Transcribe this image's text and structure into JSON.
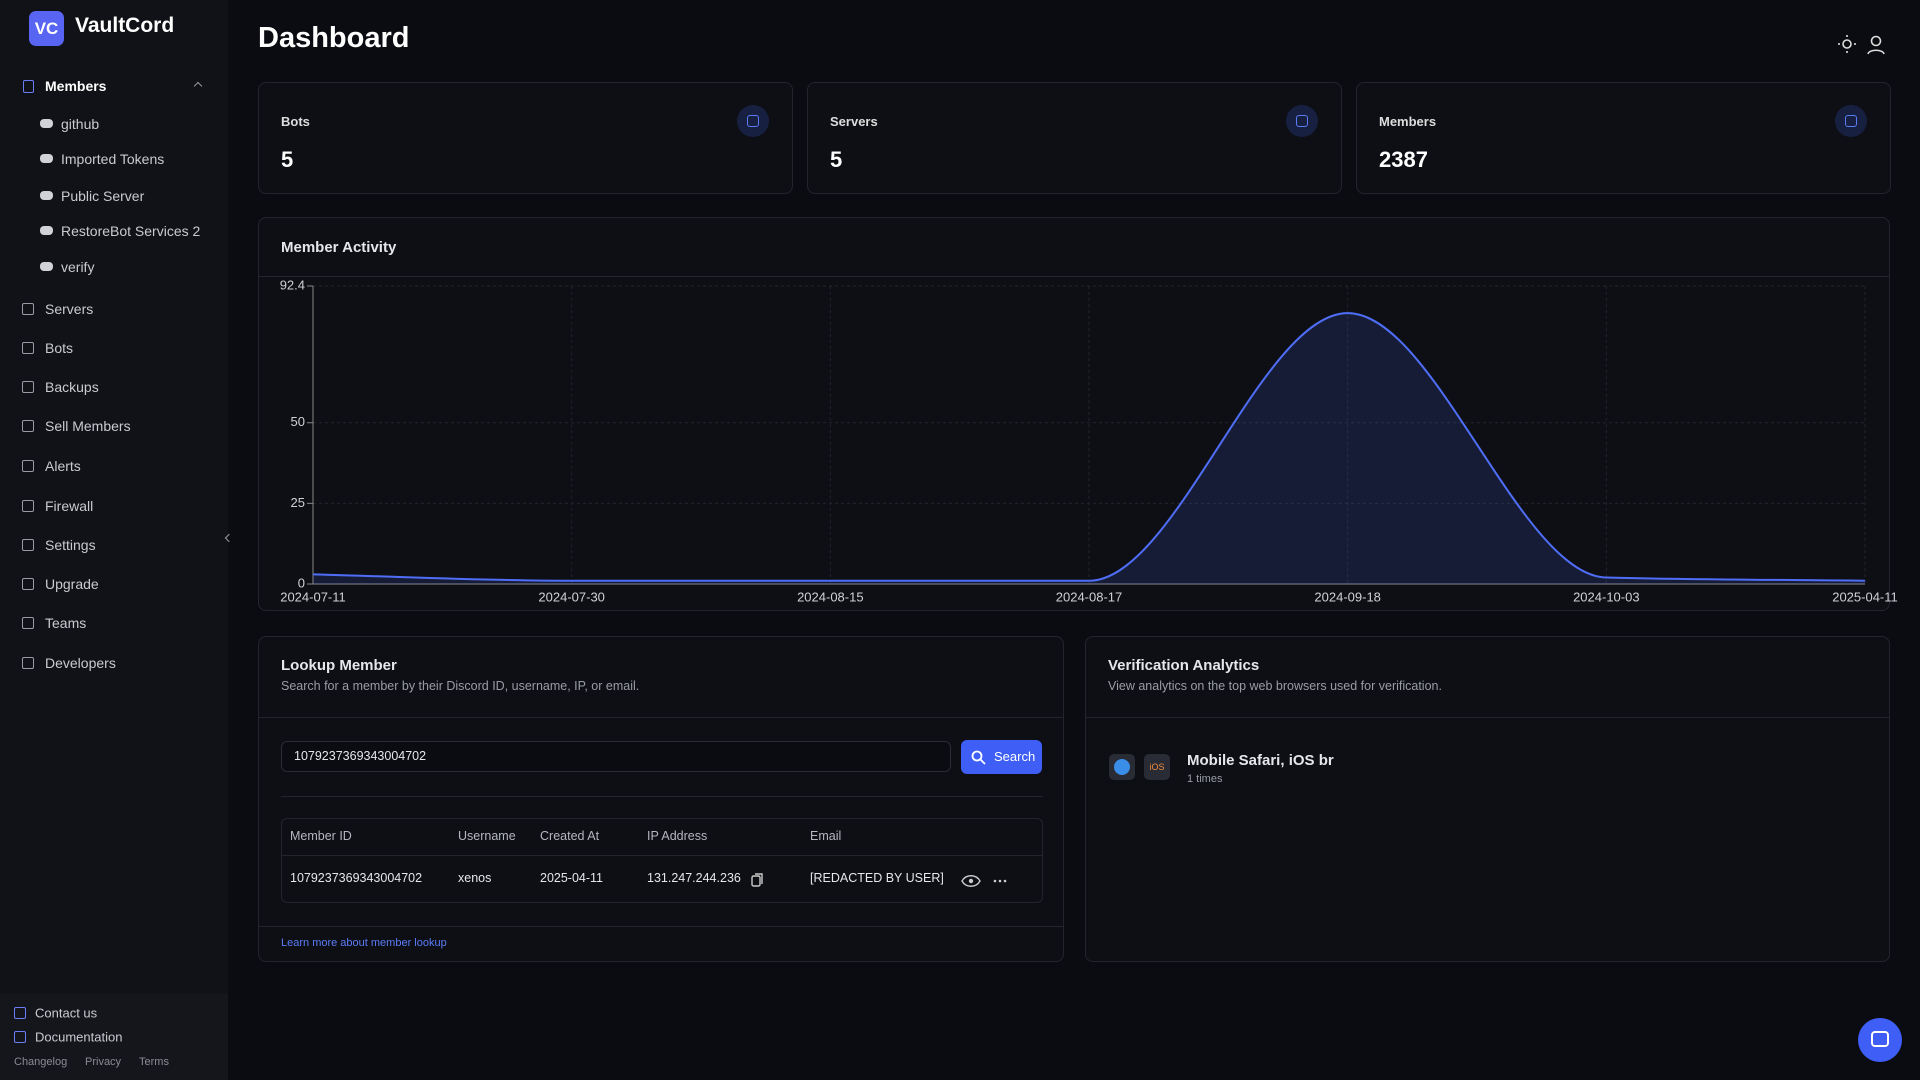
{
  "brand": "VaultCord",
  "logo": "VC",
  "sidebar": {
    "members": {
      "label": "Members",
      "items": [
        "github",
        "Imported Tokens",
        "Public Server",
        "RestoreBot Services 2",
        "verify"
      ]
    },
    "nav": [
      "Servers",
      "Bots",
      "Backups",
      "Sell Members",
      "Alerts",
      "Firewall",
      "Settings",
      "Upgrade",
      "Teams",
      "Developers"
    ],
    "footer": {
      "links": [
        "Contact us",
        "Documentation"
      ],
      "small": [
        "Changelog",
        "Privacy",
        "Terms"
      ]
    }
  },
  "header": {
    "title": "Dashboard"
  },
  "stats": [
    {
      "label": "Bots",
      "value": 5
    },
    {
      "label": "Servers",
      "value": 5
    },
    {
      "label": "Members",
      "value": 2387
    }
  ],
  "member_activity": {
    "type": "area",
    "title": "Member Activity",
    "categories": [
      "2024-07-11",
      "2024-07-30",
      "2024-08-15",
      "2024-08-17",
      "2024-09-18",
      "2024-10-03",
      "2025-04-11"
    ],
    "values": [
      3,
      1,
      1,
      1,
      84,
      2,
      1
    ],
    "ylim": [
      0,
      92.4
    ],
    "yticks": [
      0,
      25,
      50,
      92.4
    ],
    "color": "#4f6ef7",
    "grid": true
  },
  "lookup": {
    "title": "Lookup Member",
    "subtitle": "Search for a member by their Discord ID, username, IP, or email.",
    "input": "1079237369343004702",
    "button": "Search",
    "columns": [
      "Member ID",
      "Username",
      "Created At",
      "IP Address",
      "Email"
    ],
    "rows": [
      [
        "1079237369343004702",
        "xenos",
        "2025-04-11",
        "131.247.244.236",
        "[REDACTED BY USER]"
      ]
    ],
    "link": "Learn more about member lookup"
  },
  "verification": {
    "title": "Verification Analytics",
    "subtitle": "View analytics on the top web browsers used for verification.",
    "browsers": [
      {
        "badge": "iOS",
        "name": "Mobile Safari, iOS br",
        "count": "1 times"
      }
    ]
  }
}
